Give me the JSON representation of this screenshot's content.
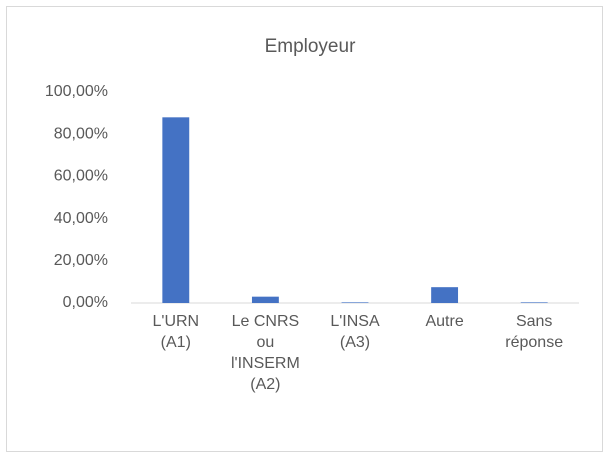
{
  "chart_data": {
    "type": "bar",
    "title": "Employeur",
    "categories": [
      "L'URN (A1)",
      "Le CNRS ou l'INSERM (A2)",
      "L'INSA (A3)",
      "Autre",
      "Sans réponse"
    ],
    "values": [
      88,
      3,
      0.3,
      7.5,
      0.3
    ],
    "color": "#4472c4",
    "ylim": [
      0,
      100
    ],
    "yticks": [
      {
        "value": 0,
        "label": "0,00%"
      },
      {
        "value": 20,
        "label": "20,00%"
      },
      {
        "value": 40,
        "label": "40,00%"
      },
      {
        "value": 60,
        "label": "60,00%"
      },
      {
        "value": 80,
        "label": "80,00%"
      },
      {
        "value": 100,
        "label": "100,00%"
      }
    ],
    "grid": false
  }
}
